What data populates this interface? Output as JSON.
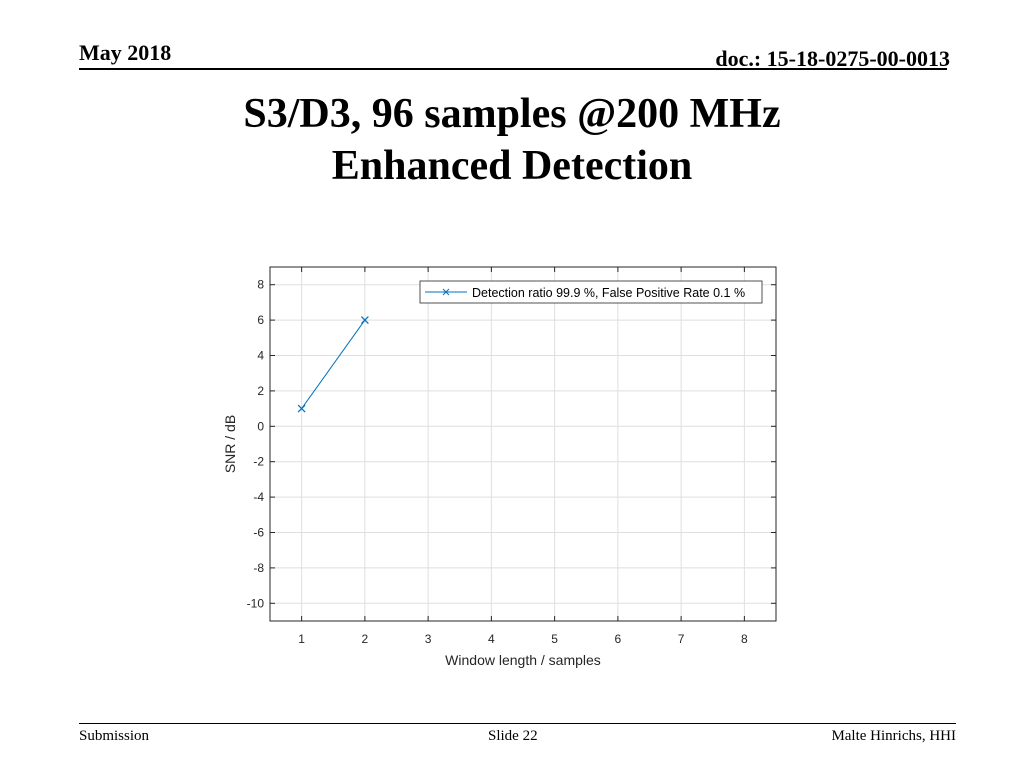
{
  "header": {
    "date": "May 2018",
    "doc": "doc.: 15-18-0275-00-0013"
  },
  "slide": {
    "title_line1": "S3/D3, 96 samples @200 MHz",
    "title_line2": "Enhanced Detection"
  },
  "chart_data": {
    "type": "line",
    "xlabel": "Window length / samples",
    "ylabel": "SNR / dB",
    "xlim": [
      0.5,
      8.5
    ],
    "ylim": [
      -11,
      9
    ],
    "xticks": [
      1,
      2,
      3,
      4,
      5,
      6,
      7,
      8
    ],
    "yticks": [
      -10,
      -8,
      -6,
      -4,
      -2,
      0,
      2,
      4,
      6,
      8
    ],
    "grid": true,
    "legend_position": "top-right",
    "series": [
      {
        "name": "Detection ratio 99.9 %, False Positive Rate 0.1 %",
        "x": [
          1,
          2
        ],
        "y": [
          1,
          6
        ],
        "color": "#0072bd",
        "marker": "x"
      }
    ]
  },
  "footer": {
    "left": "Submission",
    "center": "Slide 22",
    "right": "Malte Hinrichs, HHI"
  }
}
